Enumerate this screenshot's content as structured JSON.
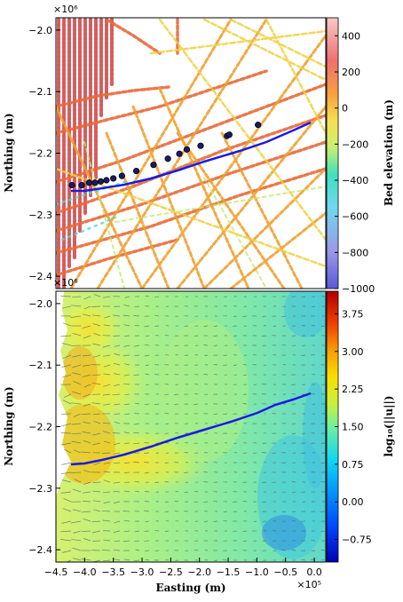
{
  "chart_data": [
    {
      "type": "scatter",
      "panel": "top",
      "title": "",
      "xlabel": "",
      "ylabel": "Northing (m)",
      "y_multiplier": "×10⁶",
      "xlim": [
        -4.5,
        0.2
      ],
      "ylim": [
        -2.42,
        -1.98
      ],
      "yticks": [
        "−2.0",
        "−2.1",
        "−2.2",
        "−2.3",
        "−2.4"
      ],
      "ytick_values": [
        -2.0,
        -2.1,
        -2.2,
        -2.3,
        -2.4
      ],
      "colorbar": {
        "label": "Bed elevation (m)",
        "ticks": [
          "400",
          "200",
          "0",
          "−200",
          "−400",
          "−600",
          "−800",
          "−1000"
        ],
        "tick_values": [
          400,
          200,
          0,
          -200,
          -400,
          -600,
          -800,
          -1000
        ],
        "range": [
          -1000,
          500
        ]
      },
      "series": [
        {
          "x": [
            -4.22,
            -4.05,
            -3.92,
            -3.82,
            -3.72,
            -3.62,
            -3.5,
            -3.35,
            -3.1,
            -2.8,
            -2.55,
            -2.35,
            -2.22,
            -1.98,
            -1.52,
            -1.48,
            -0.98
          ],
          "y": [
            -2.252,
            -2.252,
            -2.248,
            -2.248,
            -2.246,
            -2.244,
            -2.241,
            -2.237,
            -2.229,
            -2.219,
            -2.209,
            -2.201,
            -2.194,
            -2.188,
            -2.172,
            -2.17,
            -2.154
          ],
          "marker": "circle"
        }
      ],
      "flowline_color": "#1a1ae6"
    },
    {
      "type": "heatmap",
      "panel": "bottom",
      "title": "",
      "xlabel": "Easting (m)",
      "x_multiplier": "×10⁵",
      "ylabel": "Northing (m)",
      "y_multiplier": "×10⁶",
      "xlim": [
        -4.5,
        0.2
      ],
      "ylim": [
        -2.42,
        -1.98
      ],
      "xticks": [
        "−4.5",
        "−4.0",
        "−3.5",
        "−3.0",
        "−2.5",
        "−2.0",
        "−1.5",
        "−1.0",
        "−0.5",
        "0.0"
      ],
      "xtick_values": [
        -4.5,
        -4.0,
        -3.5,
        -3.0,
        -2.5,
        -2.0,
        -1.5,
        -1.0,
        -0.5,
        0.0
      ],
      "yticks": [
        "−2.0",
        "−2.1",
        "−2.2",
        "−2.3",
        "−2.4"
      ],
      "ytick_values": [
        -2.0,
        -2.1,
        -2.2,
        -2.3,
        -2.4
      ],
      "colorbar": {
        "label": "log₁₀(||u||)",
        "ticks": [
          "3.75",
          "3.00",
          "2.25",
          "1.50",
          "0.75",
          "0.00",
          "−0.75"
        ],
        "tick_values": [
          3.75,
          3.0,
          2.25,
          1.5,
          0.75,
          0.0,
          -0.75
        ],
        "range": [
          -1.2,
          4.2
        ]
      },
      "flowline": {
        "x": [
          -4.22,
          -4.05,
          -3.8,
          -3.5,
          -3.1,
          -2.6,
          -2.0,
          -1.5,
          -1.0,
          -0.6,
          -0.3
        ],
        "y": [
          -2.262,
          -2.258,
          -2.25,
          -2.241,
          -2.226,
          -2.207,
          -2.186,
          -2.168,
          -2.153,
          -2.148,
          -2.141
        ]
      },
      "flowline_color": "#1a1ae6"
    }
  ]
}
